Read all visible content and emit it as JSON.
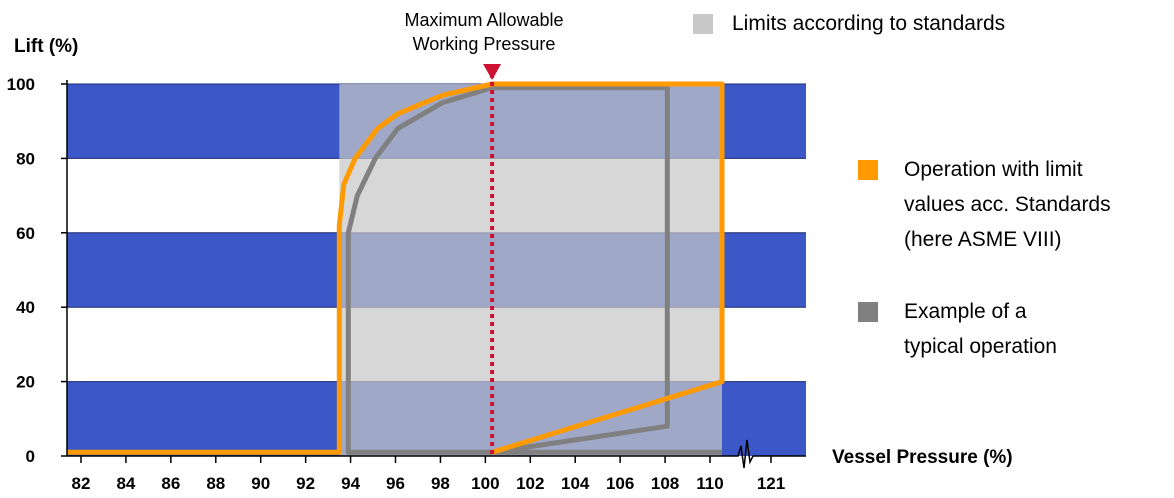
{
  "chart_data": {
    "type": "line",
    "ylabel": "Lift (%)",
    "xlabel": "Vessel Pressure (%)",
    "y_ticks": [
      "0",
      "20",
      "40",
      "60",
      "80",
      "100"
    ],
    "x_ticks": [
      "82",
      "84",
      "86",
      "88",
      "90",
      "92",
      "94",
      "96",
      "98",
      "100",
      "102",
      "104",
      "106",
      "108",
      "110",
      "121"
    ],
    "ylim": [
      0,
      100
    ],
    "xlim": [
      81.5,
      121
    ],
    "axis_break": "110–121",
    "grid": "alternating horizontal bands",
    "band_colors": {
      "blue": "#3b57c8",
      "white": "#ffffff"
    },
    "limits_region": {
      "x": [
        93.5,
        110.6
      ],
      "y": [
        0,
        100
      ],
      "color": "#c8c8c8"
    },
    "annotation": {
      "line1": "Maximum Allowable",
      "line2": "Working Pressure",
      "x": 100.3,
      "color": "#cc1133"
    },
    "legend": {
      "limits": {
        "label": "Limits according to standards",
        "color": "#c8c8c8"
      },
      "operation": {
        "label_lines": [
          "Operation with limit",
          "values acc. Standards",
          "(here ASME VIII)"
        ],
        "color": "#ff9a00"
      },
      "typical": {
        "label_lines": [
          "Example of a",
          "typical operation"
        ],
        "color": "#808080"
      }
    },
    "series": [
      {
        "key": "operation",
        "color": "#ff9a00",
        "points": [
          [
            81.5,
            1
          ],
          [
            93.5,
            1
          ],
          [
            93.5,
            62
          ],
          [
            93.7,
            73
          ],
          [
            94.2,
            80
          ],
          [
            95.2,
            88
          ],
          [
            96.1,
            92
          ],
          [
            98.1,
            97
          ],
          [
            100.3,
            100
          ],
          [
            110.6,
            100
          ],
          [
            110.6,
            20
          ],
          [
            100.3,
            1
          ]
        ]
      },
      {
        "key": "typical",
        "color": "#808080",
        "points": [
          [
            110.6,
            1
          ],
          [
            93.9,
            1
          ],
          [
            93.9,
            60
          ],
          [
            94.3,
            70
          ],
          [
            95.1,
            80
          ],
          [
            96.1,
            88
          ],
          [
            98.1,
            95
          ],
          [
            100.3,
            99
          ],
          [
            108.1,
            99
          ],
          [
            108.1,
            8
          ],
          [
            100.3,
            1
          ]
        ]
      }
    ]
  }
}
